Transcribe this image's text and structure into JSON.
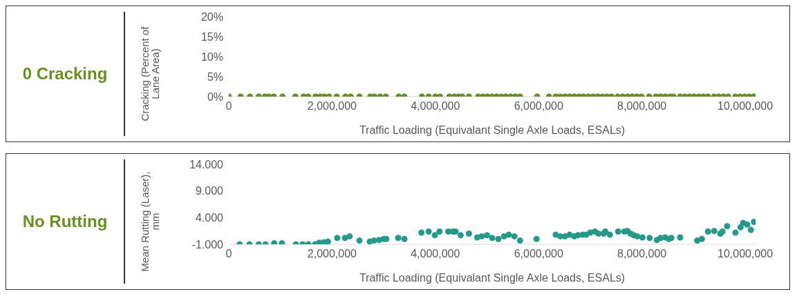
{
  "chart_data": [
    {
      "type": "scatter",
      "title": "0 Cracking",
      "xlabel": "Traffic Loading (Equivalant Single Axle Loads, ESALs)",
      "ylabel": "Cracking (Percent of Lane Area)",
      "marker": "circle",
      "xlim": [
        0,
        10200000
      ],
      "xticks": [
        0,
        {
          "value": 2000000,
          "label": "2,000,000"
        },
        {
          "value": 4000000,
          "label": "4,000,000"
        },
        {
          "value": 6000000,
          "label": "6,000,000"
        },
        {
          "value": 8000000,
          "label": "8,000,000"
        },
        {
          "value": 10000000,
          "label": "10,000,000"
        }
      ],
      "ylim": [
        0,
        20
      ],
      "yticks": [
        {
          "value": 0,
          "label": "0%"
        },
        {
          "value": 5,
          "label": "5%"
        },
        {
          "value": 10,
          "label": "10%"
        },
        {
          "value": 15,
          "label": "15%"
        },
        {
          "value": 20,
          "label": "20%"
        }
      ],
      "series": [
        {
          "color": "#6b8e23",
          "x": [
            0,
            230000,
            410000,
            580000,
            700000,
            780000,
            870000,
            1040000,
            1290000,
            1450000,
            1540000,
            1680000,
            1770000,
            1850000,
            1940000,
            2090000,
            2260000,
            2360000,
            2530000,
            2740000,
            2820000,
            2930000,
            3040000,
            3290000,
            3400000,
            3740000,
            3870000,
            4000000,
            4090000,
            4270000,
            4360000,
            4450000,
            4520000,
            4650000,
            4830000,
            4920000,
            5010000,
            5100000,
            5190000,
            5280000,
            5370000,
            5460000,
            5550000,
            5640000,
            5970000,
            6200000,
            6330000,
            6420000,
            6510000,
            6600000,
            6690000,
            6780000,
            6870000,
            6960000,
            7050000,
            7140000,
            7230000,
            7320000,
            7410000,
            7530000,
            7630000,
            7720000,
            7810000,
            7900000,
            7990000,
            8140000,
            8270000,
            8360000,
            8450000,
            8540000,
            8610000,
            8740000,
            8830000,
            8920000,
            9010000,
            9100000,
            9190000,
            9280000,
            9400000,
            9490000,
            9580000,
            9670000,
            9810000,
            9900000,
            9990000,
            10080000,
            10170000
          ],
          "values": [
            0,
            0,
            0,
            0,
            0,
            0,
            0,
            0,
            0,
            0,
            0,
            0,
            0,
            0,
            0,
            0,
            0,
            0,
            0,
            0,
            0,
            0,
            0,
            0,
            0,
            0,
            0,
            0,
            0,
            0,
            0,
            0,
            0,
            0,
            0,
            0,
            0,
            0,
            0,
            0,
            0,
            0,
            0,
            0,
            0,
            0,
            0,
            0,
            0,
            0,
            0,
            0,
            0,
            0,
            0,
            0,
            0,
            0,
            0,
            0,
            0,
            0,
            0,
            0,
            0,
            0,
            0,
            0,
            0,
            0,
            0,
            0,
            0,
            0,
            0,
            0,
            0,
            0,
            0,
            0,
            0,
            0,
            0,
            0,
            0,
            0,
            0
          ]
        }
      ]
    },
    {
      "type": "scatter",
      "title": "No Rutting",
      "xlabel": "Traffic Loading (Equivalant Single Axle Loads, ESALs)",
      "ylabel": "Mean Rutting (Laser), mm",
      "marker": "circle",
      "xlim": [
        0,
        10200000
      ],
      "xticks": [
        0,
        {
          "value": 2000000,
          "label": "2,000,000"
        },
        {
          "value": 4000000,
          "label": "4,000,000"
        },
        {
          "value": 6000000,
          "label": "6,000,000"
        },
        {
          "value": 8000000,
          "label": "8,000,000"
        },
        {
          "value": 10000000,
          "label": "10,000,000"
        }
      ],
      "ylim": [
        -1,
        14
      ],
      "yticks": [
        {
          "value": -1,
          "label": "-1.000"
        },
        {
          "value": 4,
          "label": "4.000"
        },
        {
          "value": 9,
          "label": "9.000"
        },
        {
          "value": 14,
          "label": "14.000"
        }
      ],
      "series": [
        {
          "color": "#26998a",
          "x": [
            210000,
            400000,
            580000,
            710000,
            880000,
            1030000,
            1300000,
            1430000,
            1540000,
            1670000,
            1750000,
            1840000,
            1920000,
            2100000,
            2250000,
            2340000,
            2530000,
            2730000,
            2810000,
            2910000,
            3000000,
            3050000,
            3280000,
            3400000,
            3730000,
            3870000,
            3990000,
            4080000,
            4250000,
            4340000,
            4390000,
            4490000,
            4650000,
            4810000,
            4900000,
            5000000,
            5100000,
            5220000,
            5330000,
            5420000,
            5530000,
            5640000,
            5960000,
            6330000,
            6420000,
            6510000,
            6600000,
            6690000,
            6760000,
            6850000,
            6920000,
            7000000,
            7090000,
            7160000,
            7260000,
            7290000,
            7380000,
            7540000,
            7660000,
            7720000,
            7780000,
            7840000,
            7910000,
            8010000,
            8150000,
            8290000,
            8360000,
            8450000,
            8520000,
            8570000,
            8740000,
            9070000,
            9160000,
            9280000,
            9400000,
            9520000,
            9560000,
            9650000,
            9810000,
            9910000,
            9960000,
            10040000,
            10110000,
            10170000
          ],
          "values": [
            -1.0,
            -1.0,
            -1.0,
            -1.0,
            -0.8,
            -0.8,
            -1.0,
            -1.0,
            -1.0,
            -1.0,
            -0.7,
            -0.6,
            -0.5,
            0.2,
            0.2,
            0.5,
            -0.3,
            -0.5,
            -0.3,
            -0.2,
            0.0,
            0.0,
            0.2,
            0.0,
            1.2,
            1.4,
            0.7,
            1.4,
            1.4,
            1.4,
            1.4,
            0.7,
            1.0,
            0.3,
            0.5,
            0.7,
            0.2,
            0.0,
            0.5,
            0.8,
            0.5,
            -0.3,
            0.0,
            0.8,
            0.5,
            0.5,
            0.8,
            0.5,
            0.7,
            0.8,
            0.8,
            1.2,
            1.4,
            1.0,
            1.0,
            1.4,
            0.8,
            1.4,
            1.4,
            1.5,
            1.0,
            0.7,
            0.5,
            0.3,
            0.2,
            -0.2,
            0.2,
            0.3,
            0.0,
            0.2,
            0.3,
            -0.3,
            0.0,
            1.4,
            1.5,
            1.0,
            1.4,
            2.4,
            1.2,
            2.2,
            3.0,
            2.7,
            1.7,
            3.2
          ]
        }
      ]
    }
  ]
}
